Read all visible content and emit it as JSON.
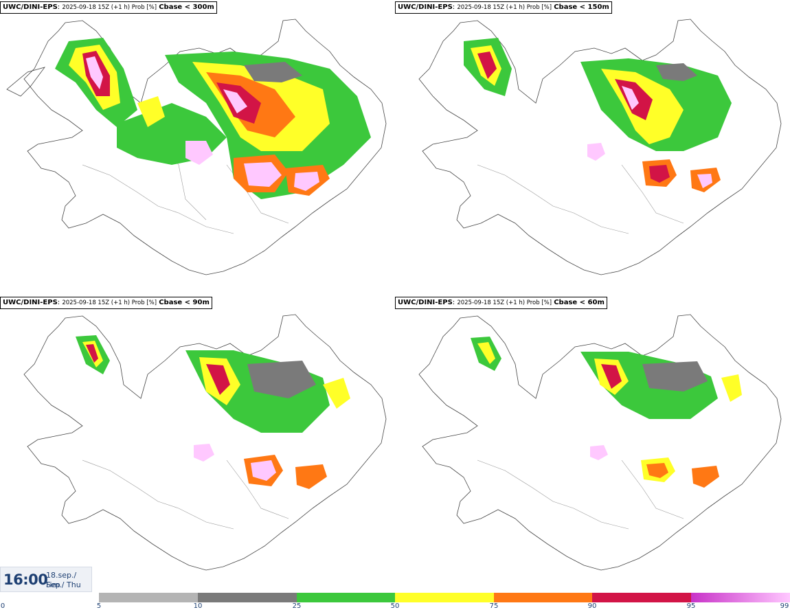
{
  "panels": [
    {
      "model": "UWC/DINI-EPS",
      "run": "2025-09-18 15Z (+1 h) Prob [%]",
      "param": "Cbase < 300m"
    },
    {
      "model": "UWC/DINI-EPS",
      "run": "2025-09-18 15Z (+1 h) Prob [%]",
      "param": "Cbase < 150m"
    },
    {
      "model": "UWC/DINI-EPS",
      "run": "2025-09-18 15Z (+1 h) Prob [%]",
      "param": "Cbase < 90m"
    },
    {
      "model": "UWC/DINI-EPS",
      "run": "2025-09-18 15Z (+1 h) Prob [%]",
      "param": "Cbase < 60m"
    }
  ],
  "valid_time": {
    "time": "16:00",
    "date": "18.sep./ Sep",
    "weekday": "Fim./ Thu"
  },
  "legend": {
    "ticks": [
      "0",
      "5",
      "10",
      "25",
      "50",
      "75",
      "90",
      "95",
      "99"
    ],
    "colors": [
      "#ffffff",
      "#b4b4b4",
      "#7a7a7a",
      "#3cc83c",
      "#ffff28",
      "#ff7814",
      "#d21446",
      "#c832c8",
      "#ffc8ff"
    ]
  }
}
